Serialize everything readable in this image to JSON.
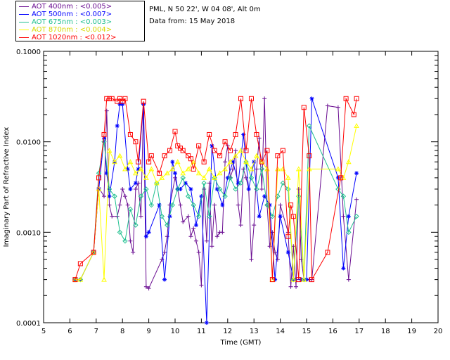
{
  "header": {
    "site_line": "PML, N 50 22', W 04 08', Alt 0m",
    "date_line": "Data from: 15 May 2018"
  },
  "legend": {
    "items": [
      {
        "label": "AOT  400nm : <0.005>",
        "color": "#6a0d91"
      },
      {
        "label": "AOT  500nm : <0.007>",
        "color": "#0000ff"
      },
      {
        "label": "AOT  675nm : <0.003>",
        "color": "#20c090"
      },
      {
        "label": "AOT  870nm : <0.004>",
        "color": "#ffff00"
      },
      {
        "label": "AOT 1020nm : <0.012>",
        "color": "#ff0000"
      }
    ]
  },
  "chart_data": {
    "type": "line",
    "xlabel": "Time (GMT)",
    "ylabel": "Imaginary Part of Refractive Index",
    "xlim": [
      5,
      20
    ],
    "ylim": [
      0.0001,
      0.1
    ],
    "yscale": "log",
    "x_ticks": [
      "5",
      "6",
      "7",
      "8",
      "9",
      "10",
      "11",
      "12",
      "13",
      "14",
      "15",
      "16",
      "17",
      "18",
      "19",
      "20"
    ],
    "y_ticks": [
      "0.0001",
      "0.0010",
      "0.0100",
      "0.1000"
    ],
    "grid": false,
    "series": [
      {
        "name": "AOT  400nm : <0.005>",
        "color": "#6a0d91",
        "marker": "plus",
        "x": [
          6.2,
          6.4,
          6.9,
          7.1,
          7.3,
          7.4,
          7.5,
          7.6,
          7.8,
          7.9,
          8.0,
          8.1,
          8.2,
          8.3,
          8.4,
          8.5,
          8.6,
          8.7,
          8.8,
          8.9,
          9.0,
          9.5,
          9.6,
          9.7,
          9.8,
          10.0,
          10.1,
          10.2,
          10.3,
          10.5,
          10.6,
          10.7,
          10.8,
          10.9,
          11.0,
          11.1,
          11.2,
          11.3,
          11.4,
          11.5,
          11.6,
          11.7,
          11.8,
          11.9,
          12.0,
          12.1,
          12.2,
          12.3,
          12.4,
          12.5,
          12.6,
          12.7,
          12.8,
          12.9,
          13.0,
          13.1,
          13.2,
          13.3,
          13.4,
          13.5,
          13.6,
          13.7,
          13.8,
          13.9,
          14.0,
          14.3,
          14.4,
          14.5,
          14.6,
          14.7,
          14.8,
          14.9,
          15.0,
          15.1,
          15.2,
          15.8,
          16.2,
          16.4,
          16.6,
          16.9
        ],
        "y": [
          0.0003,
          0.0003,
          0.0006,
          0.0031,
          0.0025,
          0.022,
          0.002,
          0.0015,
          0.0015,
          0.002,
          0.003,
          0.0025,
          0.002,
          0.0008,
          0.0006,
          0.003,
          0.0035,
          0.0015,
          0.026,
          0.00025,
          0.00024,
          0.0005,
          0.0006,
          0.0009,
          0.002,
          0.004,
          0.003,
          0.002,
          0.0013,
          0.0015,
          0.0009,
          0.0011,
          0.0008,
          0.0006,
          0.00026,
          0.003,
          0.0008,
          0.0035,
          0.0007,
          0.002,
          0.0009,
          0.001,
          0.001,
          0.006,
          0.009,
          0.004,
          0.005,
          0.008,
          0.002,
          0.0012,
          0.005,
          0.004,
          0.003,
          0.0005,
          0.0012,
          0.005,
          0.011,
          0.003,
          0.03,
          0.002,
          0.0007,
          0.001,
          0.0006,
          0.0005,
          0.002,
          0.001,
          0.00025,
          0.0007,
          0.00025,
          0.003,
          0.0005,
          0.0003,
          0.0003,
          0.0003,
          0.0003,
          0.025,
          0.024,
          0.0015,
          0.0003,
          0.0023
        ]
      },
      {
        "name": "AOT  500nm : <0.007>",
        "color": "#0000ff",
        "marker": "asterisk",
        "x": [
          6.2,
          6.4,
          6.9,
          7.1,
          7.3,
          7.4,
          7.5,
          7.7,
          7.8,
          7.9,
          8.0,
          8.2,
          8.3,
          8.5,
          8.6,
          8.8,
          8.9,
          9.0,
          9.4,
          9.6,
          9.8,
          9.9,
          10.0,
          10.1,
          10.2,
          10.4,
          10.6,
          10.8,
          11.0,
          11.2,
          11.4,
          11.6,
          11.8,
          12.0,
          12.2,
          12.4,
          12.6,
          12.8,
          13.0,
          13.2,
          13.4,
          13.6,
          13.8,
          14.0,
          14.3,
          14.5,
          14.8,
          15.0,
          15.2,
          16.2,
          16.4,
          16.6,
          16.9
        ],
        "y": [
          0.0003,
          0.0003,
          0.0006,
          0.003,
          0.011,
          0.0045,
          0.0025,
          0.006,
          0.015,
          0.026,
          0.026,
          0.005,
          0.003,
          0.0035,
          0.005,
          0.026,
          0.0009,
          0.001,
          0.002,
          0.0003,
          0.0015,
          0.006,
          0.0045,
          0.003,
          0.003,
          0.0035,
          0.003,
          0.0012,
          0.0025,
          0.0001,
          0.009,
          0.003,
          0.002,
          0.004,
          0.006,
          0.0035,
          0.012,
          0.003,
          0.006,
          0.0015,
          0.0025,
          0.002,
          0.0003,
          0.0015,
          0.0006,
          0.0003,
          0.0003,
          0.0003,
          0.03,
          0.004,
          0.0004,
          0.0015,
          0.0045
        ]
      },
      {
        "name": "AOT  675nm : <0.003>",
        "color": "#20c090",
        "marker": "diamond",
        "x": [
          6.2,
          6.4,
          6.9,
          7.1,
          7.3,
          7.5,
          7.7,
          7.9,
          8.1,
          8.3,
          8.5,
          8.7,
          8.9,
          9.1,
          9.3,
          9.5,
          9.7,
          9.9,
          10.1,
          10.3,
          10.5,
          10.7,
          10.9,
          11.1,
          11.3,
          11.5,
          11.7,
          11.9,
          12.1,
          12.3,
          12.5,
          12.7,
          12.9,
          13.1,
          13.3,
          13.5,
          13.7,
          13.9,
          14.1,
          14.3,
          14.5,
          14.7,
          14.9,
          15.1,
          16.2,
          16.4,
          16.6,
          16.9
        ],
        "y": [
          0.0003,
          0.0003,
          0.0006,
          0.0045,
          0.01,
          0.003,
          0.0025,
          0.001,
          0.0008,
          0.0018,
          0.0012,
          0.0025,
          0.003,
          0.002,
          0.0035,
          0.0015,
          0.0012,
          0.002,
          0.003,
          0.004,
          0.0025,
          0.002,
          0.0015,
          0.0035,
          0.0015,
          0.004,
          0.003,
          0.0025,
          0.004,
          0.003,
          0.0035,
          0.006,
          0.004,
          0.003,
          0.005,
          0.002,
          0.0015,
          0.0025,
          0.0035,
          0.003,
          0.0003,
          0.0025,
          0.0003,
          0.015,
          0.003,
          0.0025,
          0.001,
          0.0015
        ]
      },
      {
        "name": "AOT  870nm : <0.004>",
        "color": "#ffff00",
        "marker": "triangle",
        "x": [
          6.2,
          6.4,
          6.9,
          7.1,
          7.3,
          7.5,
          7.7,
          7.9,
          8.1,
          8.3,
          8.5,
          8.7,
          8.9,
          9.1,
          9.3,
          9.5,
          9.7,
          9.9,
          10.1,
          10.3,
          10.5,
          10.7,
          10.9,
          11.1,
          11.3,
          11.5,
          11.7,
          11.9,
          12.1,
          12.3,
          12.5,
          12.7,
          12.9,
          13.1,
          13.3,
          13.5,
          13.7,
          13.9,
          14.1,
          14.3,
          14.5,
          14.7,
          14.9,
          15.1,
          16.2,
          16.4,
          16.6,
          16.9
        ],
        "y": [
          0.0003,
          0.0003,
          0.0006,
          0.003,
          0.0003,
          0.008,
          0.006,
          0.007,
          0.005,
          0.006,
          0.0045,
          0.005,
          0.004,
          0.005,
          0.0035,
          0.004,
          0.0045,
          0.005,
          0.006,
          0.0045,
          0.005,
          0.006,
          0.0045,
          0.004,
          0.005,
          0.004,
          0.0045,
          0.005,
          0.006,
          0.007,
          0.008,
          0.006,
          0.005,
          0.007,
          0.006,
          0.005,
          0.0003,
          0.005,
          0.005,
          0.004,
          0.0003,
          0.005,
          0.0003,
          0.005,
          0.005,
          0.004,
          0.006,
          0.015
        ]
      },
      {
        "name": "AOT 1020nm : <0.012>",
        "color": "#ff0000",
        "marker": "square",
        "x": [
          6.2,
          6.4,
          6.9,
          7.1,
          7.3,
          7.4,
          7.5,
          7.6,
          7.8,
          7.9,
          8.0,
          8.1,
          8.3,
          8.5,
          8.6,
          8.8,
          9.0,
          9.1,
          9.4,
          9.6,
          9.8,
          10.0,
          10.1,
          10.2,
          10.3,
          10.5,
          10.6,
          10.7,
          10.9,
          11.1,
          11.3,
          11.5,
          11.7,
          11.9,
          12.1,
          12.3,
          12.5,
          12.7,
          12.9,
          13.1,
          13.3,
          13.5,
          13.7,
          13.9,
          14.1,
          14.3,
          14.4,
          14.5,
          14.7,
          14.9,
          15.1,
          15.2,
          15.8,
          16.3,
          16.5,
          16.8,
          16.9
        ],
        "y": [
          0.0003,
          0.00045,
          0.0006,
          0.004,
          0.012,
          0.03,
          0.03,
          0.03,
          0.028,
          0.03,
          0.028,
          0.03,
          0.012,
          0.01,
          0.006,
          0.028,
          0.006,
          0.007,
          0.0045,
          0.007,
          0.008,
          0.013,
          0.009,
          0.0085,
          0.008,
          0.007,
          0.0065,
          0.005,
          0.009,
          0.006,
          0.012,
          0.008,
          0.007,
          0.01,
          0.008,
          0.012,
          0.03,
          0.008,
          0.03,
          0.012,
          0.006,
          0.008,
          0.0003,
          0.007,
          0.008,
          0.0009,
          0.002,
          0.0015,
          0.0003,
          0.024,
          0.007,
          0.0003,
          0.0006,
          0.004,
          0.03,
          0.02,
          0.03
        ]
      }
    ]
  }
}
